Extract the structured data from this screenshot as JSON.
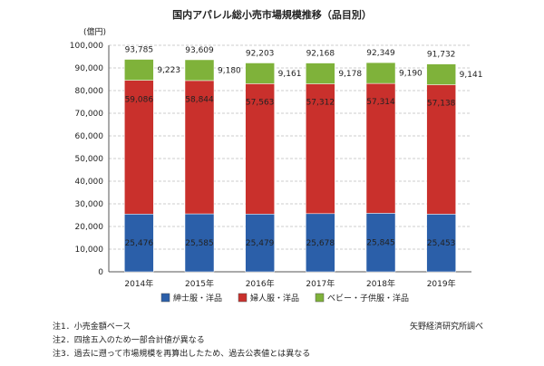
{
  "chart_data": {
    "type": "bar",
    "stacked": true,
    "title": "国内アパレル総小売市場規模推移（品目別）",
    "unit_label": "(億円)",
    "categories": [
      "2014年",
      "2015年",
      "2016年",
      "2017年",
      "2018年",
      "2019年"
    ],
    "series": [
      {
        "name": "紳士服・洋品",
        "values": [
          25476,
          25585,
          25479,
          25678,
          25845,
          25453
        ],
        "color": "#2b5fa9"
      },
      {
        "name": "婦人服・洋品",
        "values": [
          59086,
          58844,
          57563,
          57312,
          57314,
          57138
        ],
        "color": "#c9302c"
      },
      {
        "name": "ベビー・子供服・洋品",
        "values": [
          9223,
          9180,
          9161,
          9178,
          9190,
          9141
        ],
        "color": "#7fb23a"
      }
    ],
    "totals": [
      93785,
      93609,
      92203,
      92168,
      92349,
      91732
    ],
    "value_labels": {
      "totals": [
        "93,785",
        "93,609",
        "92,203",
        "92,168",
        "92,349",
        "91,732"
      ],
      "series": [
        [
          "25,476",
          "25,585",
          "25,479",
          "25,678",
          "25,845",
          "25,453"
        ],
        [
          "59,086",
          "58,844",
          "57,563",
          "57,312",
          "57,314",
          "57,138"
        ],
        [
          "9,223",
          "9,180",
          "9,161",
          "9,178",
          "9,190",
          "9,141"
        ]
      ]
    },
    "ylim": [
      0,
      100000
    ],
    "yticks": [
      0,
      10000,
      20000,
      30000,
      40000,
      50000,
      60000,
      70000,
      80000,
      90000,
      100000
    ],
    "ytick_labels": [
      "0",
      "10,000",
      "20,000",
      "30,000",
      "40,000",
      "50,000",
      "60,000",
      "70,000",
      "80,000",
      "90,000",
      "100,000"
    ],
    "grid": true,
    "legend_position": "bottom"
  },
  "notes": [
    "注1．小売金額ベース",
    "注2．四捨五入のため一部合計値が異なる",
    "注3．過去に遡って市場規模を再算出したため、過去公表値とは異なる"
  ],
  "source": "矢野経済研究所調べ"
}
